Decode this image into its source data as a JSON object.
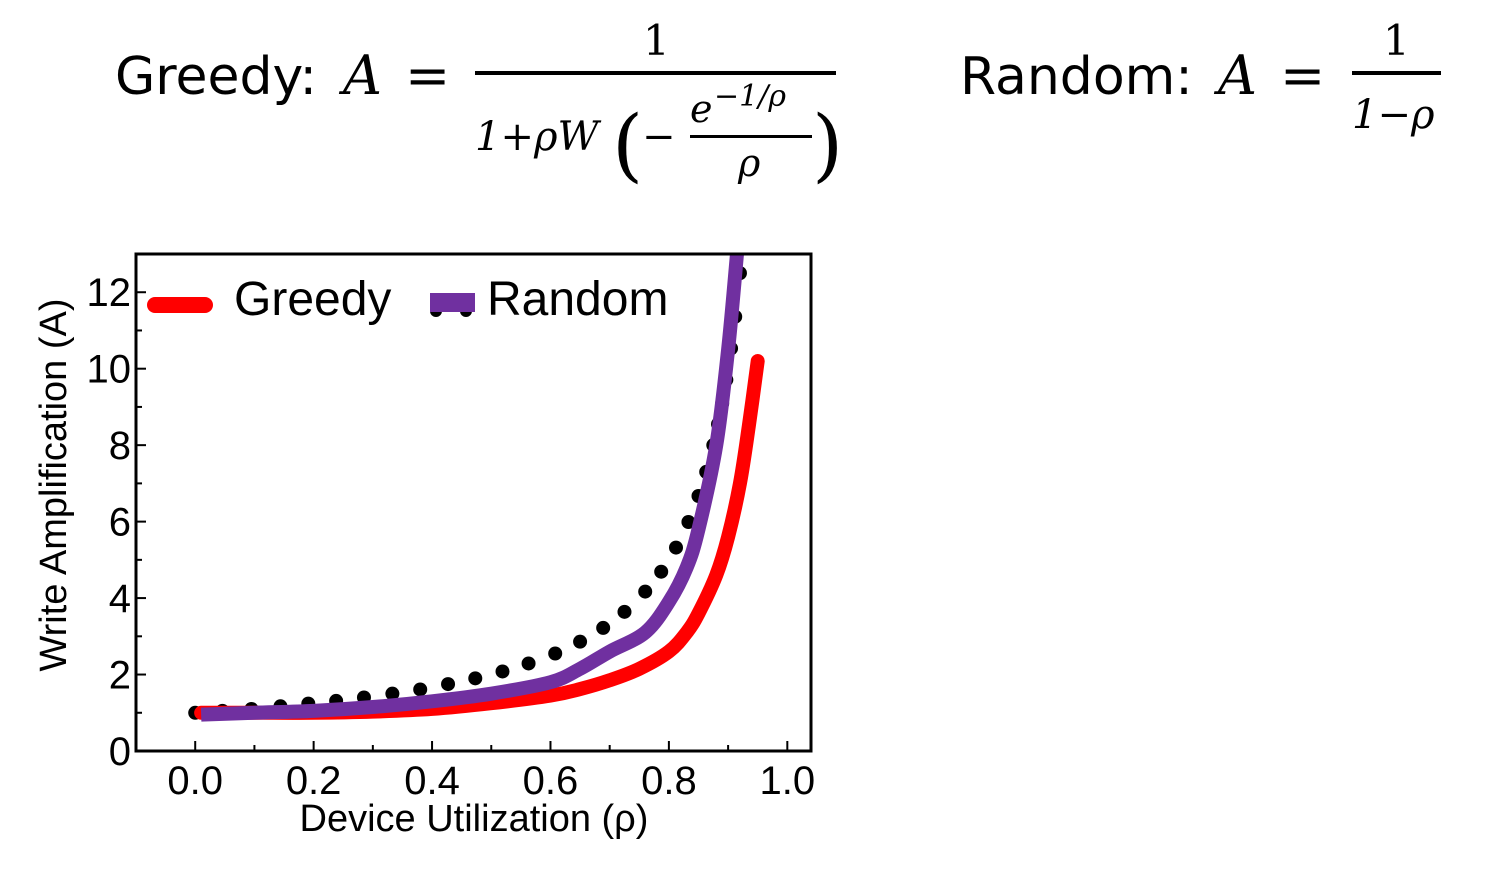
{
  "formulas": {
    "greedy": {
      "label": "Greedy:",
      "lhs": "A",
      "eq": "=",
      "numerator": "1",
      "denom_prefix": "1+ρW",
      "lparen": "(",
      "minus": "−",
      "inner_num": "e",
      "inner_exp": "−1/ρ",
      "inner_den": "ρ",
      "rparen": ")"
    },
    "random": {
      "label": "Random:",
      "lhs": "A",
      "eq": "=",
      "numerator": "1",
      "denominator": "1−ρ"
    }
  },
  "chart_data": {
    "type": "line",
    "title": "",
    "xlabel": "Device Utilization (ρ)",
    "ylabel": "Write Amplification (A)",
    "xlim": [
      -0.1,
      1.04
    ],
    "ylim": [
      0,
      13
    ],
    "xticks": [
      "0.0",
      "0.2",
      "0.4",
      "0.6",
      "0.8",
      "1.0"
    ],
    "xtick_values": [
      0,
      0.2,
      0.4,
      0.6,
      0.8,
      1.0
    ],
    "yticks": [
      "0",
      "2",
      "4",
      "6",
      "8",
      "10",
      "12"
    ],
    "ytick_values": [
      0,
      2,
      4,
      6,
      8,
      10,
      12
    ],
    "grid": false,
    "legend_position": "top-left",
    "legend": [
      "Greedy",
      "Random"
    ],
    "colors": {
      "greedy": "#ff0000",
      "random": "#7030a0",
      "dots": "#000000"
    },
    "series": [
      {
        "name": "Greedy",
        "style": "line",
        "x": [
          0.01,
          0.1,
          0.2,
          0.3,
          0.4,
          0.5,
          0.6,
          0.65,
          0.7,
          0.75,
          0.8,
          0.83,
          0.85,
          0.88,
          0.9,
          0.92,
          0.935,
          0.95
        ],
        "y": [
          1.0,
          1.0,
          1.0,
          1.03,
          1.1,
          1.25,
          1.45,
          1.62,
          1.85,
          2.15,
          2.6,
          3.1,
          3.6,
          4.6,
          5.6,
          7.0,
          8.5,
          10.2
        ]
      },
      {
        "name": "Random",
        "style": "line",
        "x": [
          0.01,
          0.1,
          0.2,
          0.3,
          0.4,
          0.5,
          0.6,
          0.65,
          0.7,
          0.76,
          0.8,
          0.83,
          0.85,
          0.88,
          0.9,
          0.915
        ],
        "y": [
          0.95,
          1.0,
          1.05,
          1.15,
          1.3,
          1.5,
          1.8,
          2.15,
          2.6,
          3.1,
          3.9,
          4.8,
          5.8,
          8.0,
          10.5,
          13.0
        ]
      },
      {
        "name": "Random (theory)",
        "style": "dots",
        "x": [
          0,
          0.046,
          0.095,
          0.144,
          0.191,
          0.238,
          0.285,
          0.333,
          0.38,
          0.427,
          0.473,
          0.519,
          0.563,
          0.608,
          0.65,
          0.689,
          0.725,
          0.76,
          0.787,
          0.812,
          0.833,
          0.85,
          0.863,
          0.875,
          0.883,
          0.89,
          0.897,
          0.905,
          0.912,
          0.92
        ],
        "y": [
          1.0,
          1.05,
          1.1,
          1.17,
          1.24,
          1.31,
          1.4,
          1.5,
          1.61,
          1.75,
          1.9,
          2.08,
          2.29,
          2.55,
          2.86,
          3.22,
          3.64,
          4.17,
          4.69,
          5.32,
          5.99,
          6.67,
          7.3,
          8.0,
          8.55,
          9.09,
          9.71,
          10.53,
          11.36,
          12.5
        ]
      }
    ]
  }
}
